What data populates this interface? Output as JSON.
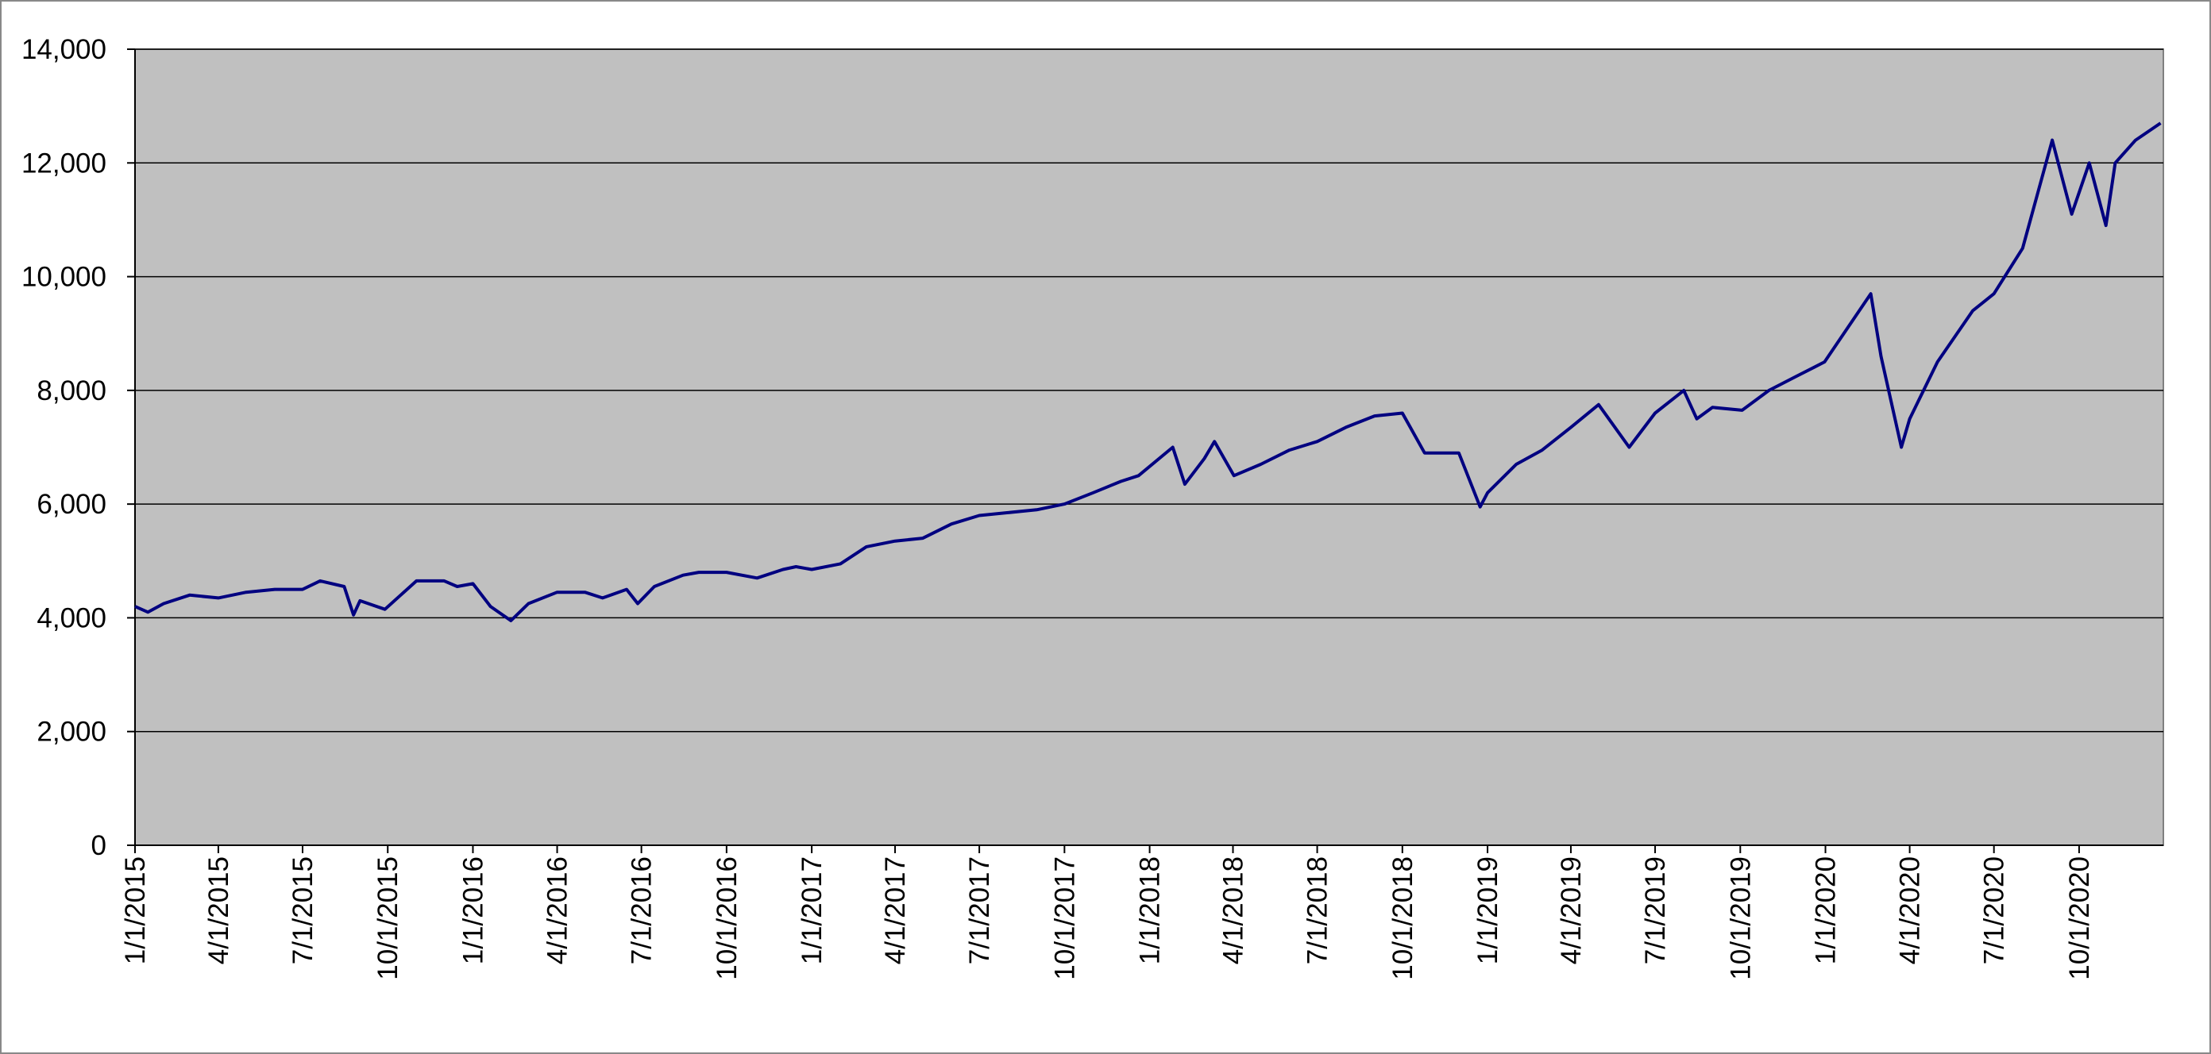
{
  "chart_data": {
    "type": "line",
    "x": [
      "1/1/2015",
      "1/15/2015",
      "2/1/2015",
      "3/1/2015",
      "4/1/2015",
      "5/1/2015",
      "6/1/2015",
      "7/1/2015",
      "7/20/2015",
      "8/15/2015",
      "8/25/2015",
      "9/1/2015",
      "9/28/2015",
      "10/15/2015",
      "11/1/2015",
      "12/1/2015",
      "12/15/2015",
      "1/1/2016",
      "1/20/2016",
      "2/11/2016",
      "3/1/2016",
      "4/1/2016",
      "5/1/2016",
      "5/20/2016",
      "6/15/2016",
      "6/27/2016",
      "7/15/2016",
      "8/15/2016",
      "9/1/2016",
      "10/1/2016",
      "11/3/2016",
      "12/1/2016",
      "12/15/2016",
      "1/1/2017",
      "2/1/2017",
      "3/1/2017",
      "4/1/2017",
      "5/1/2017",
      "6/1/2017",
      "7/1/2017",
      "8/1/2017",
      "9/1/2017",
      "10/1/2017",
      "11/1/2017",
      "12/1/2017",
      "12/20/2017",
      "1/26/2018",
      "2/8/2018",
      "3/1/2018",
      "3/12/2018",
      "4/2/2018",
      "5/1/2018",
      "6/1/2018",
      "7/1/2018",
      "8/1/2018",
      "9/1/2018",
      "10/1/2018",
      "10/25/2018",
      "11/15/2018",
      "12/1/2018",
      "12/24/2018",
      "1/1/2019",
      "2/1/2019",
      "3/1/2019",
      "4/1/2019",
      "5/1/2019",
      "6/3/2019",
      "7/1/2019",
      "8/1/2019",
      "8/15/2019",
      "9/1/2019",
      "10/3/2019",
      "11/1/2019",
      "12/1/2019",
      "12/31/2019",
      "2/19/2020",
      "3/1/2020",
      "3/23/2020",
      "4/1/2020",
      "5/1/2020",
      "6/8/2020",
      "7/1/2020",
      "8/1/2020",
      "9/2/2020",
      "9/23/2020",
      "10/12/2020",
      "10/30/2020",
      "11/9/2020",
      "12/1/2020",
      "12/28/2020"
    ],
    "series": [
      {
        "color": "#000080",
        "values": [
          4200,
          4100,
          4250,
          4400,
          4350,
          4450,
          4500,
          4500,
          4650,
          4550,
          4050,
          4300,
          4150,
          4400,
          4650,
          4650,
          4550,
          4600,
          4200,
          3950,
          4250,
          4450,
          4450,
          4350,
          4500,
          4250,
          4550,
          4750,
          4800,
          4800,
          4700,
          4850,
          4900,
          4850,
          4950,
          5250,
          5350,
          5400,
          5650,
          5800,
          5850,
          5900,
          6000,
          6200,
          6400,
          6500,
          7000,
          6350,
          6800,
          7100,
          6500,
          6700,
          6950,
          7100,
          7350,
          7550,
          7600,
          6900,
          6900,
          6900,
          5950,
          6200,
          6700,
          6950,
          7350,
          7750,
          7000,
          7600,
          8000,
          7500,
          7700,
          7650,
          8000,
          8250,
          8500,
          9700,
          8600,
          7000,
          7500,
          8500,
          9400,
          9700,
          10500,
          12400,
          11100,
          12000,
          10900,
          12000,
          12400,
          12700
        ]
      }
    ],
    "xlim": [
      "1/1/2015",
      "12/31/2020"
    ],
    "xticks": [
      "1/1/2015",
      "4/1/2015",
      "7/1/2015",
      "10/1/2015",
      "1/1/2016",
      "4/1/2016",
      "7/1/2016",
      "10/1/2016",
      "1/1/2017",
      "4/1/2017",
      "7/1/2017",
      "10/1/2017",
      "1/1/2018",
      "4/1/2018",
      "7/1/2018",
      "10/1/2018",
      "1/1/2019",
      "4/1/2019",
      "7/1/2019",
      "10/1/2019",
      "1/1/2020",
      "4/1/2020",
      "7/1/2020",
      "10/1/2020"
    ],
    "ylim": [
      0,
      14000
    ],
    "yticks": [
      0,
      {
        "value": 2000,
        "label": "2,000"
      },
      {
        "value": 4000,
        "label": "4,000"
      },
      {
        "value": 6000,
        "label": "6,000"
      },
      {
        "value": 8000,
        "label": "8,000"
      },
      {
        "value": 10000,
        "label": "10,000"
      },
      {
        "value": 12000,
        "label": "12,000"
      },
      {
        "value": 14000,
        "label": "14,000"
      }
    ],
    "grid": true,
    "background": "#c0c0c0"
  }
}
